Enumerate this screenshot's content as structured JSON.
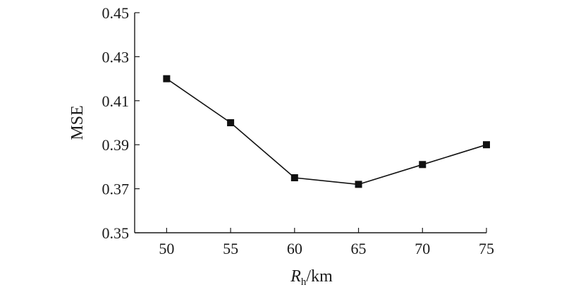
{
  "chart_data": {
    "type": "line",
    "x": [
      50,
      55,
      60,
      65,
      70,
      75
    ],
    "series": [
      {
        "values": [
          0.42,
          0.4,
          0.375,
          0.372,
          0.381,
          0.39
        ]
      }
    ],
    "xlabel_main": "R",
    "xlabel_sub": "h",
    "xlabel_unit": "/km",
    "ylabel": "MSE",
    "xticks": [
      "50",
      "55",
      "60",
      "65",
      "70",
      "75"
    ],
    "yticks": [
      "0.35",
      "0.37",
      "0.39",
      "0.41",
      "0.43",
      "0.45"
    ],
    "ytick_values": [
      0.35,
      0.37,
      0.39,
      0.41,
      0.43,
      0.45
    ],
    "xlim": [
      47.5,
      75
    ],
    "ylim": [
      0.35,
      0.45
    ],
    "marker": "square",
    "line_color": "#111111",
    "grid": false
  }
}
